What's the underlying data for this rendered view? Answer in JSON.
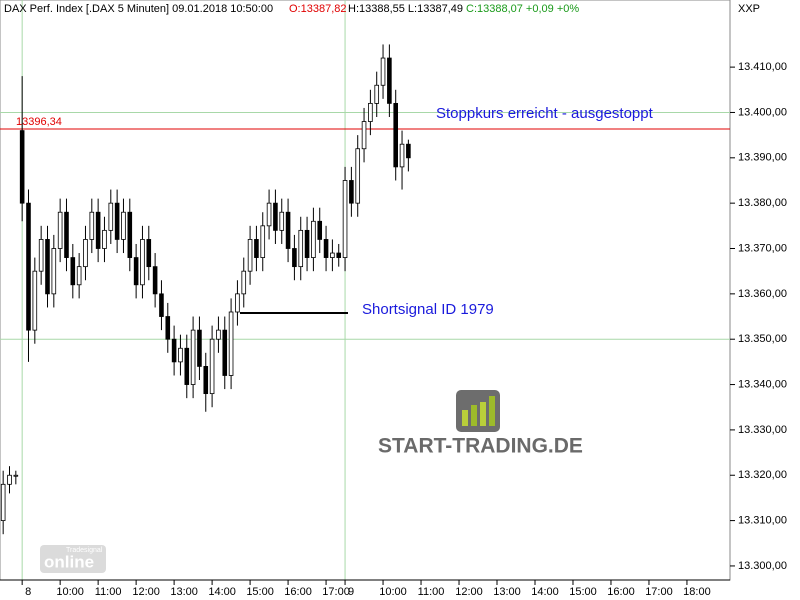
{
  "header": {
    "instrument": "DAX Perf. Index [.DAX  5 Minuten] 09.01.2018 10:50:00",
    "open": "O:13387,82",
    "high_low": "H:13388,55 L:13387,49",
    "close": "C:13388,07 +0,09 +0%",
    "code": "XXP"
  },
  "chart_data": {
    "type": "candlestick",
    "x": [
      0,
      1,
      2,
      3,
      4,
      5,
      6,
      7,
      8,
      9,
      10,
      11,
      12,
      13,
      14,
      15,
      16,
      17,
      18,
      19,
      20,
      21,
      22,
      23,
      24,
      25,
      26,
      27,
      28,
      29,
      30,
      31,
      32,
      33,
      34,
      35,
      36,
      37,
      38,
      39,
      40,
      41,
      42,
      43,
      44,
      45,
      46,
      47,
      48,
      49,
      50,
      51,
      52,
      53,
      54,
      55,
      56,
      57,
      58,
      59,
      60,
      61,
      62,
      63,
      64,
      65
    ],
    "open": [
      13312,
      13310,
      13318,
      13320,
      13396,
      13380,
      13352,
      13365,
      13372,
      13360,
      13370,
      13378,
      13368,
      13362,
      13366,
      13372,
      13378,
      13370,
      13374,
      13380,
      13372,
      13378,
      13368,
      13362,
      13372,
      13366,
      13360,
      13355,
      13350,
      13345,
      13348,
      13340,
      13352,
      13344,
      13338,
      13350,
      13352,
      13342,
      13356,
      13360,
      13365,
      13372,
      13368,
      13375,
      13380,
      13374,
      13378,
      13370,
      13366,
      13374,
      13368,
      13376,
      13372,
      13368,
      13369,
      13368,
      13385,
      13380,
      13392,
      13398,
      13402,
      13406,
      13412,
      13402,
      13388,
      13393
    ],
    "high": [
      13315,
      13321,
      13322,
      13321,
      13408,
      13383,
      13368,
      13375,
      13375,
      13373,
      13381,
      13381,
      13371,
      13369,
      13375,
      13381,
      13381,
      13377,
      13383,
      13383,
      13381,
      13381,
      13371,
      13375,
      13375,
      13369,
      13363,
      13358,
      13353,
      13351,
      13351,
      13355,
      13355,
      13347,
      13353,
      13355,
      13355,
      13359,
      13363,
      13368,
      13375,
      13375,
      13378,
      13383,
      13383,
      13381,
      13381,
      13373,
      13377,
      13377,
      13379,
      13379,
      13375,
      13372,
      13371,
      13388,
      13388,
      13395,
      13401,
      13405,
      13409,
      13415,
      13415,
      13405,
      13396,
      13394
    ],
    "low": [
      13306,
      13307,
      13316,
      13318,
      13376,
      13345,
      13349,
      13362,
      13357,
      13357,
      13367,
      13365,
      13359,
      13359,
      13363,
      13369,
      13367,
      13367,
      13371,
      13369,
      13369,
      13365,
      13359,
      13359,
      13363,
      13357,
      13352,
      13347,
      13342,
      13342,
      13337,
      13337,
      13341,
      13334,
      13335,
      13347,
      13339,
      13339,
      13353,
      13357,
      13362,
      13365,
      13365,
      13372,
      13371,
      13371,
      13367,
      13363,
      13363,
      13365,
      13365,
      13369,
      13365,
      13365,
      13366,
      13365,
      13377,
      13377,
      13389,
      13395,
      13399,
      13403,
      13399,
      13385,
      13383,
      13387
    ],
    "close": [
      13310,
      13318,
      13320,
      13320,
      13380,
      13352,
      13365,
      13372,
      13360,
      13370,
      13378,
      13368,
      13362,
      13366,
      13372,
      13378,
      13370,
      13374,
      13380,
      13372,
      13378,
      13368,
      13362,
      13372,
      13366,
      13360,
      13355,
      13350,
      13345,
      13348,
      13340,
      13352,
      13344,
      13338,
      13350,
      13352,
      13342,
      13356,
      13360,
      13365,
      13372,
      13368,
      13375,
      13380,
      13374,
      13378,
      13370,
      13366,
      13374,
      13368,
      13376,
      13372,
      13368,
      13369,
      13368,
      13385,
      13380,
      13392,
      13398,
      13402,
      13406,
      13412,
      13402,
      13388,
      13393,
      13390
    ],
    "xlim": [
      0.5,
      115.8
    ],
    "ylim": [
      13296.9,
      13424.8
    ],
    "xticks": [
      {
        "value": 4,
        "label": "8"
      },
      {
        "value": 10,
        "label": "10:00"
      },
      {
        "value": 16,
        "label": "11:00"
      },
      {
        "value": 22,
        "label": "12:00"
      },
      {
        "value": 28,
        "label": "13:00"
      },
      {
        "value": 34,
        "label": "14:00"
      },
      {
        "value": 40,
        "label": "15:00"
      },
      {
        "value": 46,
        "label": "16:00"
      },
      {
        "value": 52,
        "label": "17:00"
      },
      {
        "value": 55,
        "label": "9"
      },
      {
        "value": 61,
        "label": "10:00"
      },
      {
        "value": 67,
        "label": "11:00"
      },
      {
        "value": 73,
        "label": "12:00"
      },
      {
        "value": 79,
        "label": "13:00"
      },
      {
        "value": 85,
        "label": "14:00"
      },
      {
        "value": 91,
        "label": "15:00"
      },
      {
        "value": 97,
        "label": "16:00"
      },
      {
        "value": 103,
        "label": "17:00"
      },
      {
        "value": 109,
        "label": "18:00"
      }
    ],
    "yticks": [
      {
        "value": 13300,
        "label": "13.300,00"
      },
      {
        "value": 13310,
        "label": "13.310,00"
      },
      {
        "value": 13320,
        "label": "13.320,00"
      },
      {
        "value": 13330,
        "label": "13.330,00"
      },
      {
        "value": 13340,
        "label": "13.340,00"
      },
      {
        "value": 13350,
        "label": "13.350,00"
      },
      {
        "value": 13360,
        "label": "13.360,00"
      },
      {
        "value": 13370,
        "label": "13.370,00"
      },
      {
        "value": 13380,
        "label": "13.380,00"
      },
      {
        "value": 13390,
        "label": "13.390,00"
      },
      {
        "value": 13400,
        "label": "13.400,00"
      },
      {
        "value": 13410,
        "label": "13.410,00"
      }
    ],
    "grid_y": [
      13350,
      13400
    ],
    "grid_x": [
      4,
      55
    ],
    "grid_color": "#a8d8a8",
    "up_color": "#ffffff",
    "down_color": "#000000",
    "reference_line": {
      "value": 13396.34,
      "label": "13396,34",
      "color": "#e00000"
    },
    "annotations": [
      "Stoppkurs erreicht - ausgestoppt",
      "Shortsignal ID 1979"
    ]
  },
  "watermarks": {
    "logo": "START-TRADING.DE",
    "vendor": "Tradesignal",
    "product": "online"
  }
}
